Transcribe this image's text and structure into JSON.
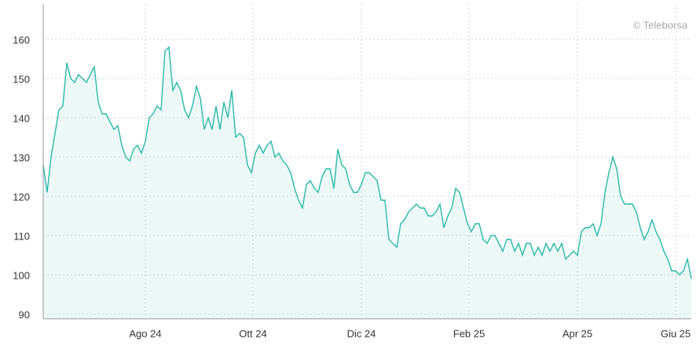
{
  "chart_data": {
    "type": "line",
    "watermark": "© Teleborsa",
    "x": [
      0,
      1,
      2,
      3,
      4,
      5,
      6,
      7,
      8,
      9,
      10,
      11,
      12,
      13,
      14,
      15,
      16,
      17,
      18,
      19,
      20,
      21,
      22,
      23,
      24,
      25,
      26,
      27,
      28,
      29,
      30,
      31,
      32,
      33,
      34,
      35,
      36,
      37,
      38,
      39,
      40,
      41,
      42,
      43,
      44,
      45,
      46,
      47,
      48,
      49,
      50,
      51,
      52,
      53,
      54,
      55,
      56,
      57,
      58,
      59,
      60,
      61,
      62,
      63,
      64,
      65,
      66,
      67,
      68,
      69,
      70,
      71,
      72,
      73,
      74,
      75,
      76,
      77,
      78,
      79,
      80,
      81,
      82,
      83,
      84,
      85,
      86,
      87,
      88,
      89,
      90,
      91,
      92,
      93,
      94,
      95,
      96,
      97,
      98,
      99,
      100,
      101,
      102,
      103,
      104,
      105,
      106,
      107,
      108,
      109,
      110,
      111,
      112,
      113,
      114,
      115,
      116,
      117,
      118,
      119,
      120,
      121,
      122,
      123,
      124,
      125,
      126,
      127,
      128,
      129,
      130,
      131,
      132,
      133,
      134,
      135,
      136,
      137,
      138,
      139,
      140,
      141,
      142,
      143,
      144,
      145,
      146,
      147,
      148,
      149,
      150,
      151,
      152,
      153,
      154,
      155,
      156,
      157,
      158,
      159,
      160,
      161,
      162,
      163,
      164,
      165
    ],
    "values": [
      128,
      121,
      130,
      136,
      142,
      143,
      154,
      150,
      149,
      151,
      150,
      149,
      151,
      153,
      144,
      141,
      141,
      139,
      137,
      138,
      133,
      130,
      129,
      132,
      133,
      131,
      134,
      140,
      141,
      143,
      142,
      157,
      158,
      147,
      149,
      147,
      142,
      140,
      143,
      148,
      145,
      137,
      140,
      137,
      143,
      137,
      144,
      140,
      147,
      135,
      136,
      135,
      128,
      126,
      131,
      133,
      131,
      133,
      134,
      130,
      131,
      129,
      128,
      126,
      122,
      119,
      117,
      123,
      124,
      122,
      121,
      125,
      127,
      127,
      122,
      132,
      128,
      127,
      123,
      121,
      121,
      123,
      126,
      126,
      125,
      124,
      119,
      119,
      109,
      108,
      107,
      113,
      114,
      116,
      117,
      118,
      117,
      117,
      115,
      115,
      116,
      118,
      112,
      115,
      117,
      122,
      121,
      117,
      113,
      111,
      113,
      113,
      109,
      108,
      110,
      110,
      108,
      106,
      109,
      109,
      106,
      108,
      105,
      108,
      108,
      105,
      107,
      105,
      108,
      106,
      108,
      106,
      108,
      104,
      105,
      106,
      105,
      111,
      112,
      112,
      113,
      110,
      113,
      121,
      126,
      130,
      127,
      120,
      118,
      118,
      118,
      116,
      112,
      109,
      111,
      114,
      111,
      109,
      106,
      104,
      101,
      101,
      100,
      101,
      104,
      99
    ],
    "color": "#2bb8aa",
    "xlim": [
      0,
      165
    ],
    "xticks": [
      {
        "value": 26,
        "label": "Ago 24"
      },
      {
        "value": 53.4,
        "label": "Ott 24"
      },
      {
        "value": 81,
        "label": "Dic 24"
      },
      {
        "value": 108.4,
        "label": "Feb 25"
      },
      {
        "value": 136,
        "label": "Apr 25"
      },
      {
        "value": 161,
        "label": "Giu 25"
      }
    ],
    "ylim": [
      88.8,
      169
    ],
    "yticks": [
      90,
      100,
      110,
      120,
      130,
      140,
      150,
      160
    ],
    "grid": true
  }
}
